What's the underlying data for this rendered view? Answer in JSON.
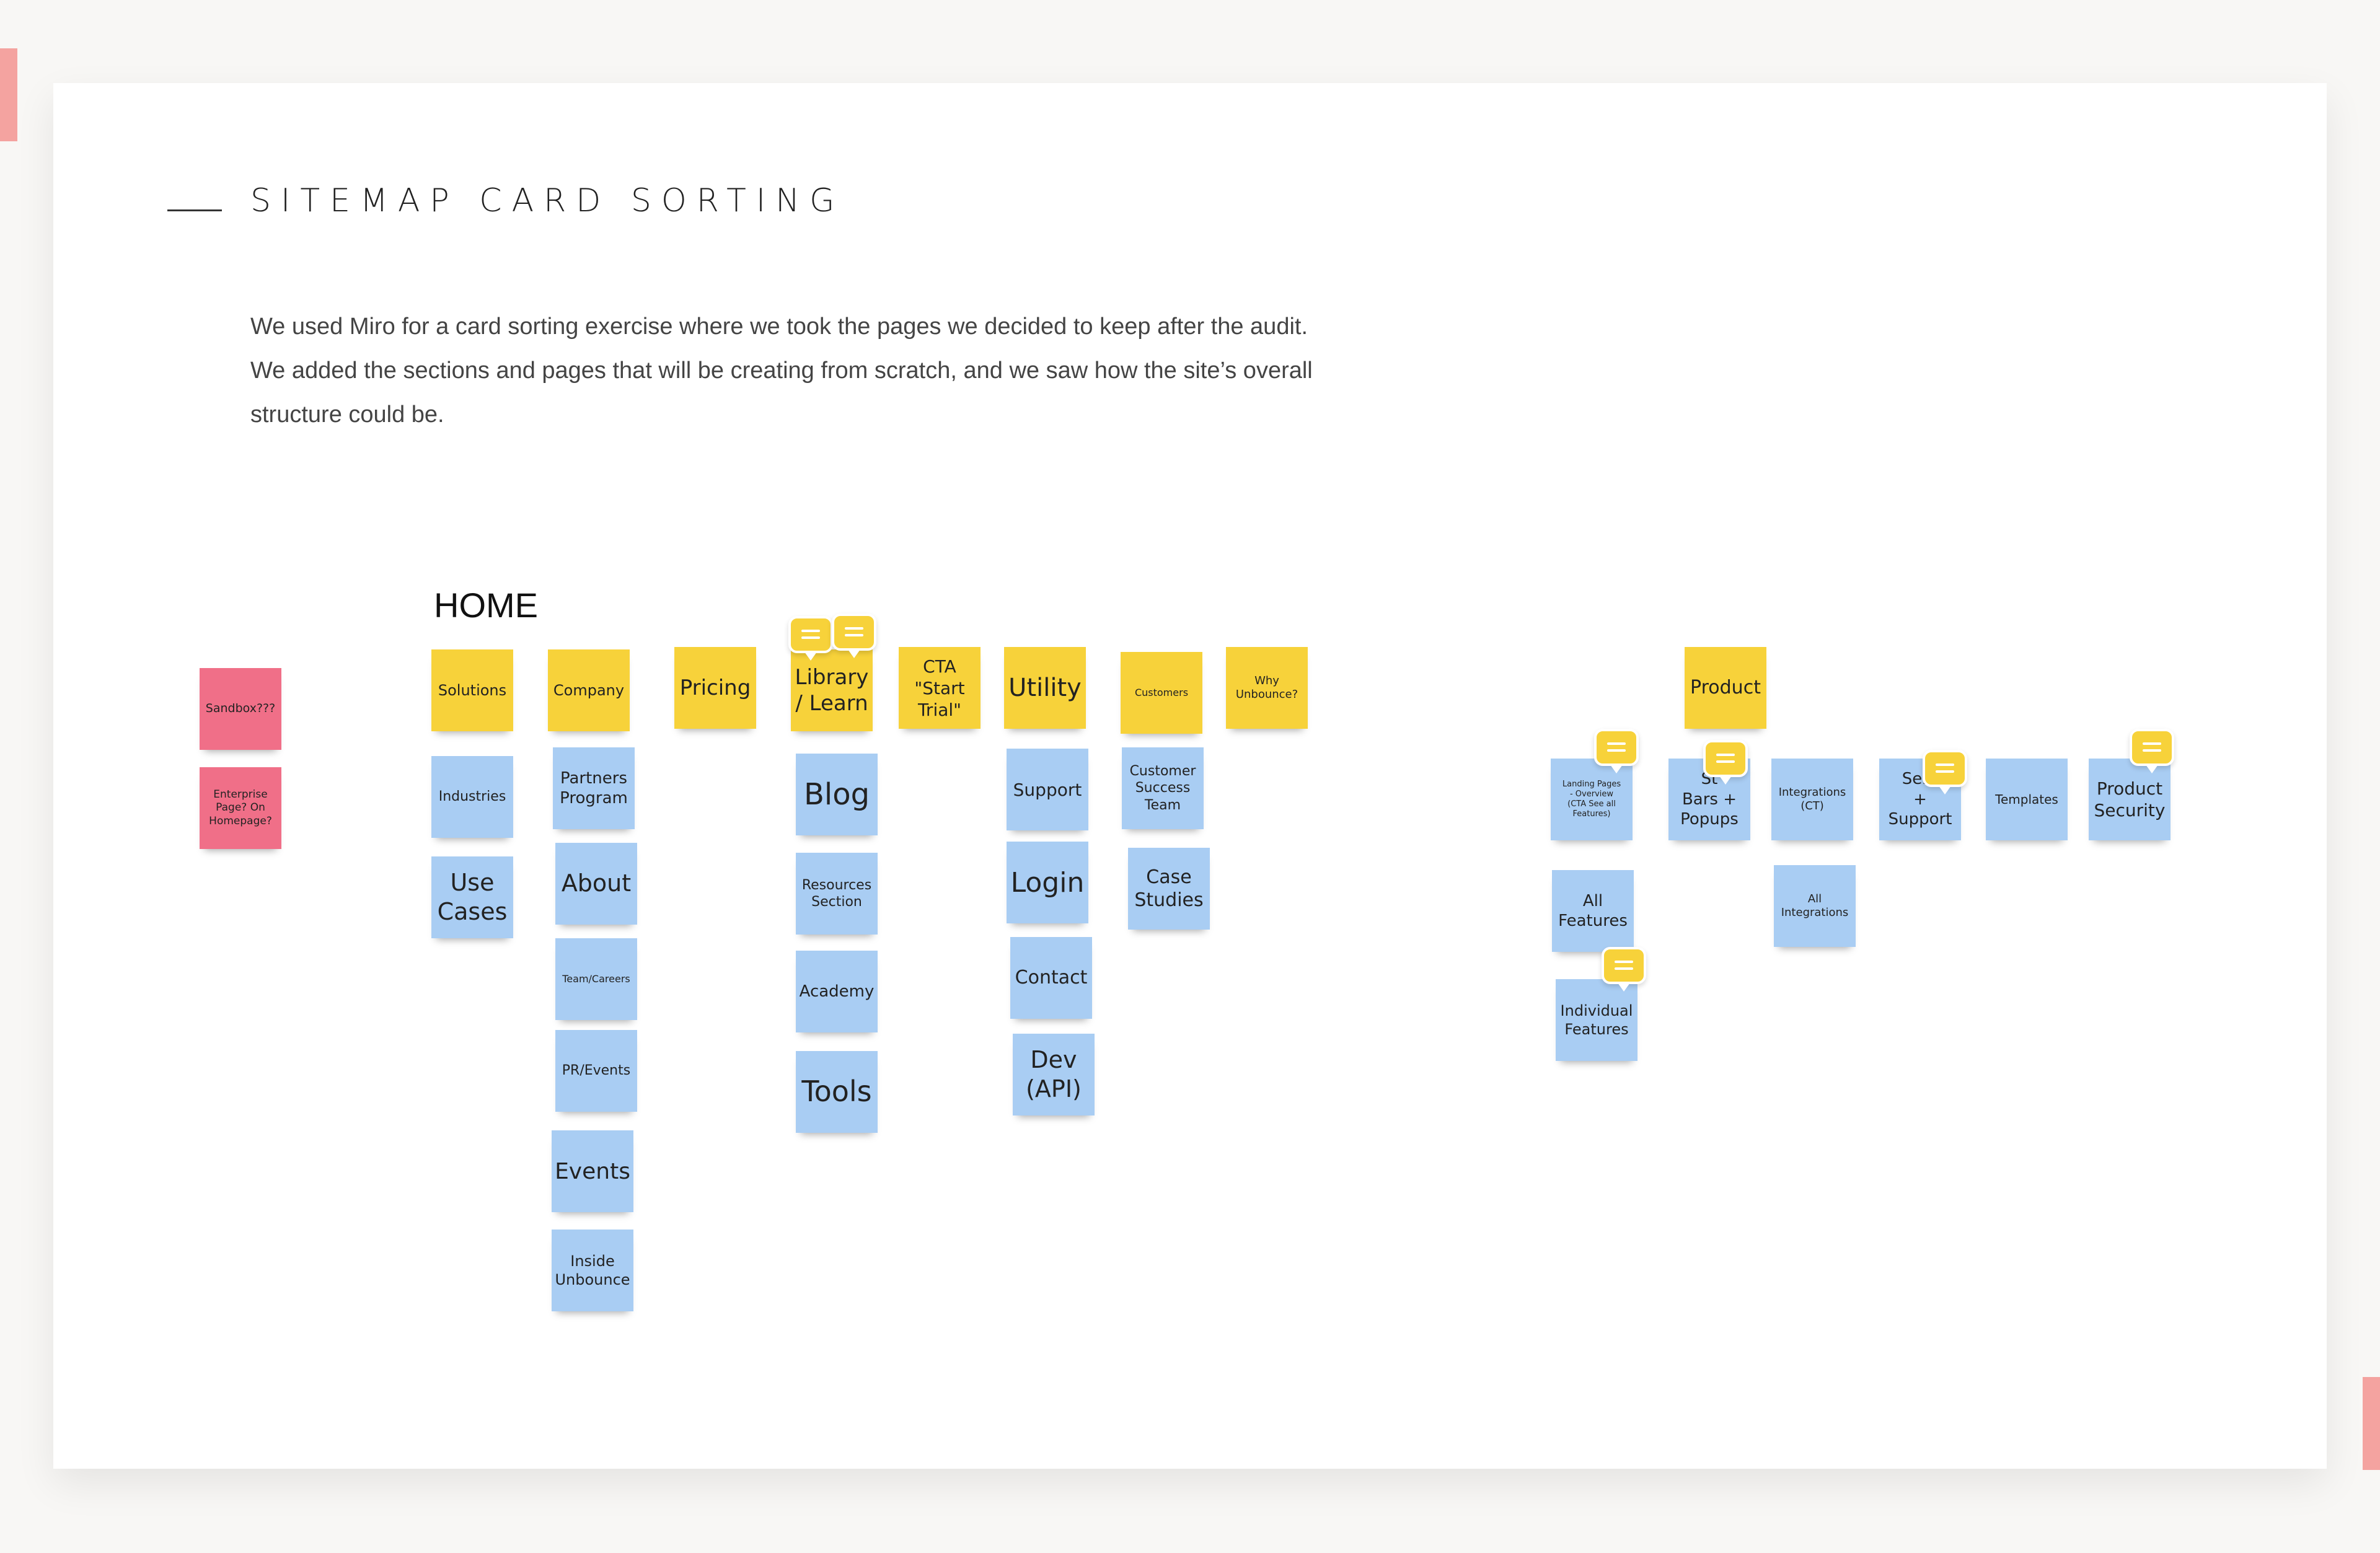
{
  "section": {
    "title": "SITEMAP CARD SORTING",
    "intro_lines": [
      "We used Miro for a card sorting exercise where we took the pages we decided to keep after the audit.",
      "We added the sections and pages that will be creating from scratch, and we saw how the site’s overall",
      "structure could be."
    ]
  },
  "board": {
    "home_label": "HOME",
    "colors": {
      "yellow": "#f7d23a",
      "blue": "#a9cdf3",
      "pink": "#f06f88",
      "accent": "#f4a3a0"
    },
    "side_notes": [
      "Sandbox???",
      "Enterprise\nPage? On\nHomepage?"
    ],
    "home_columns": [
      {
        "header": "Solutions",
        "children": [
          "Industries",
          "Use\nCases"
        ]
      },
      {
        "header": "Company",
        "children": [
          "Partners\nProgram",
          "About",
          "Team/Careers",
          "PR/Events",
          "Events",
          "Inside\nUnbounce"
        ]
      },
      {
        "header": "Pricing",
        "children": []
      },
      {
        "header": "Library\n/ Learn",
        "children": [
          "Blog",
          "Resources\nSection",
          "Academy",
          "Tools"
        ]
      },
      {
        "header": "CTA\n\"Start\nTrial\"",
        "children": []
      },
      {
        "header": "Utility",
        "children": [
          "Support",
          "Login",
          "Contact",
          "Dev\n(API)"
        ]
      },
      {
        "header": "Customers",
        "children": [
          "Customer\nSuccess\nTeam",
          "Case\nStudies"
        ]
      },
      {
        "header": "Why\nUnbounce?",
        "children": []
      }
    ],
    "product": {
      "header": "Product",
      "items": [
        "Landing Pages\n- Overview\n(CTA See all\nFeatures)",
        "St\nBars +\nPopups",
        "Integrations\n(CT)",
        "Serv\n+\nSupport",
        "Templates",
        "Product\nSecurity",
        "All\nFeatures",
        "All\nIntegrations",
        "Individual\nFeatures"
      ]
    }
  }
}
